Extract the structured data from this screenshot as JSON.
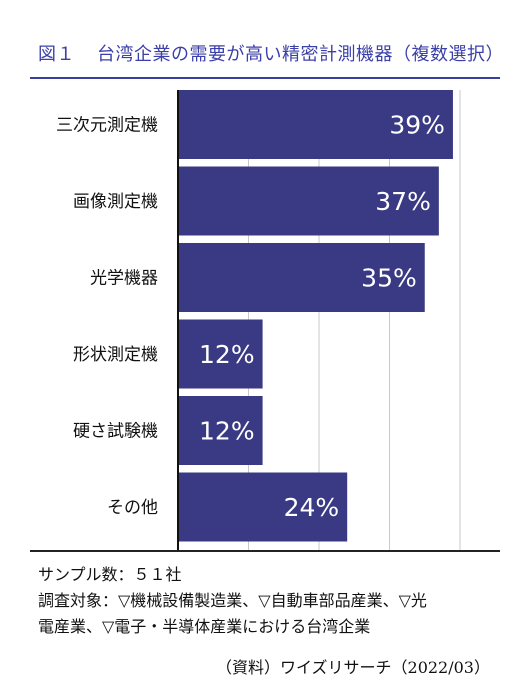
{
  "chart_data": {
    "type": "bar",
    "orientation": "horizontal",
    "title": "台湾企業の需要が高い精密計測機器（複数選択）",
    "figure_label": "図１",
    "categories": [
      "三次元測定機",
      "画像測定機",
      "光学機器",
      "形状測定機",
      "硬さ試験機",
      "その他"
    ],
    "values": [
      39,
      37,
      35,
      12,
      12,
      24
    ],
    "value_labels": [
      "39%",
      "37%",
      "35%",
      "12%",
      "12%",
      "24%"
    ],
    "xlim": [
      0,
      40
    ],
    "grid": true,
    "bar_color": "#3a3a84",
    "label_color": "#ffffff"
  },
  "notes": {
    "sample": "サンプル数：５１社",
    "target_line1": "調査対象：▽機械設備製造業、▽自動車部品産業、▽光",
    "target_line2": "電産業、▽電子・半導体産業における台湾企業",
    "source": "（資料）ワイズリサーチ（2022/03）"
  },
  "colors": {
    "title": "#3b3fa8",
    "accent_rule": "#3a3f9e"
  }
}
